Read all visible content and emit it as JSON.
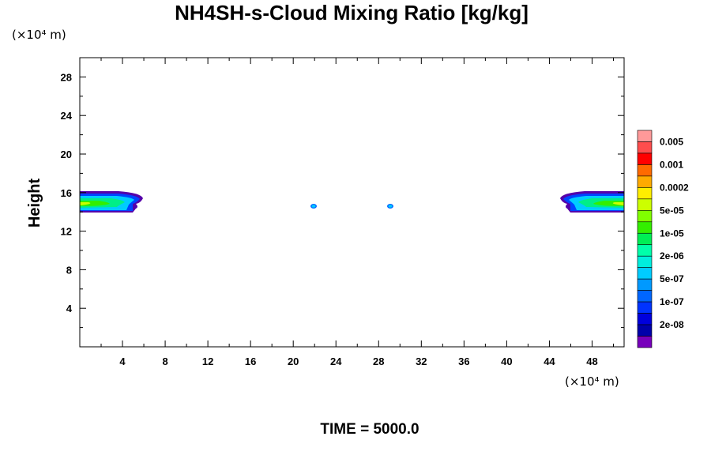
{
  "chart_data": {
    "type": "heatmap",
    "title": "NH4SH-s-Cloud Mixing Ratio [kg/kg]",
    "ylabel": "Height",
    "y_unit": "(×10⁴ m)",
    "x_unit": "(×10⁴ m)",
    "xlim": [
      0,
      51
    ],
    "ylim": [
      0,
      30
    ],
    "x_ticks": [
      4,
      8,
      12,
      16,
      20,
      24,
      28,
      32,
      36,
      40,
      44,
      48
    ],
    "y_ticks": [
      4,
      8,
      12,
      16,
      20,
      24,
      28
    ],
    "time_label": "TIME = 5000.0",
    "colorbar": {
      "labels": [
        "0.005",
        "0.001",
        "0.0002",
        "5e-05",
        "1e-05",
        "2e-06",
        "5e-07",
        "1e-07",
        "2e-08"
      ],
      "colors": [
        "#ff9999",
        "#ff4d4d",
        "#ff0000",
        "#ff6a00",
        "#ffaa00",
        "#ffee00",
        "#ccff00",
        "#80ff00",
        "#33ee00",
        "#00ee55",
        "#00ffaa",
        "#00eedd",
        "#00ccff",
        "#0099ff",
        "#0066ff",
        "#0033ff",
        "#0000dd",
        "#0000aa",
        "#7700bb"
      ]
    },
    "features": [
      {
        "name": "left-cloud-layer",
        "x_range": [
          0,
          6.5
        ],
        "y_range": [
          13.9,
          15.8
        ]
      },
      {
        "name": "right-cloud-layer",
        "x_range": [
          45,
          51
        ],
        "y_range": [
          13.9,
          15.8
        ]
      },
      {
        "name": "cloud-blob-1",
        "x_center": 22,
        "y_center": 14.6
      },
      {
        "name": "cloud-blob-2",
        "x_center": 29.2,
        "y_center": 14.6
      }
    ]
  }
}
